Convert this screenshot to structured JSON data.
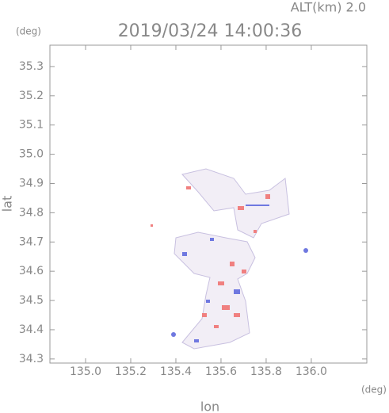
{
  "chart_data": {
    "type": "map",
    "title": "2019/03/24 14:00:36",
    "subtitle": "ALT(km) 2.0",
    "x_label": "lon",
    "x_unit": "(deg)",
    "y_label": "lat",
    "y_unit": "(deg)",
    "xlim": [
      134.842,
      136.246
    ],
    "ylim": [
      34.286,
      35.373
    ],
    "xticks": [
      {
        "value": 135,
        "label": "135.0"
      },
      135.2,
      135.4,
      135.6,
      135.8,
      {
        "value": 136,
        "label": "136.0"
      }
    ],
    "yticks": [
      34.3,
      34.4,
      34.5,
      34.6,
      34.7,
      34.8,
      34.9,
      {
        "value": 35,
        "label": "35.0"
      },
      35.1,
      35.2,
      35.3
    ]
  }
}
